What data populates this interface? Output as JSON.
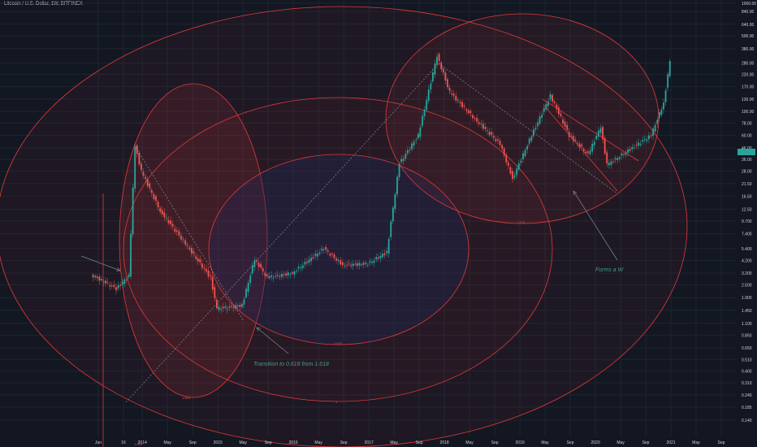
{
  "header": {
    "title": "Litecoin / U.S. Dollar, 1W, BITFINEX"
  },
  "price_badge": {
    "value": "",
    "color": "#26a69a"
  },
  "colors": {
    "background": "#131722",
    "grid": "#1f2432",
    "up": "#26a69a",
    "down": "#ef5350",
    "ellipse": "#e03a3a",
    "trend": "#b2b5be",
    "annotation": "#3f9f86"
  },
  "chart_data": {
    "type": "candlestick",
    "title": "Litecoin / U.S. Dollar, 1W, BITFINEX",
    "y_scale": "log",
    "ylim": [
      0.1,
      1000
    ],
    "y_ticks": [
      "1000.00",
      "840.00",
      "640.00",
      "500.00",
      "380.00",
      "280.00",
      "220.00",
      "170.00",
      "130.00",
      "100.00",
      "78.00",
      "60.00",
      "46.00",
      "36.00",
      "28.00",
      "21.50",
      "16.50",
      "12.50",
      "9.700",
      "7.400",
      "5.400",
      "4.200",
      "3.200",
      "2.500",
      "1.900",
      "1.450",
      "1.100",
      "0.850",
      "0.650",
      "0.510",
      "0.400",
      "0.310",
      "0.240",
      "0.185",
      "0.140"
    ],
    "x_ticks": [
      "Jun",
      "16",
      "2014",
      "May",
      "Sep",
      "2015",
      "May",
      "Sep",
      "2016",
      "May",
      "Sep",
      "2017",
      "May",
      "Sep",
      "2018",
      "May",
      "Sep",
      "2019",
      "May",
      "Sep",
      "2020",
      "May",
      "Sep",
      "2021",
      "May",
      "Sep"
    ],
    "x_range": [
      "2013-05",
      "2021-11"
    ],
    "series": [
      {
        "period": "2013-05",
        "price": 3.1
      },
      {
        "period": "2013-09",
        "price": 2.3
      },
      {
        "period": "2013-11",
        "price": 3.0
      },
      {
        "period": "2013-12",
        "price": 48.0
      },
      {
        "period": "2014-01",
        "price": 28.0
      },
      {
        "period": "2014-04",
        "price": 12.0
      },
      {
        "period": "2014-08",
        "price": 6.0
      },
      {
        "period": "2014-12",
        "price": 2.9
      },
      {
        "period": "2015-01",
        "price": 1.5
      },
      {
        "period": "2015-05",
        "price": 1.6
      },
      {
        "period": "2015-07",
        "price": 4.3
      },
      {
        "period": "2015-09",
        "price": 2.9
      },
      {
        "period": "2016-01",
        "price": 3.2
      },
      {
        "period": "2016-06",
        "price": 5.4
      },
      {
        "period": "2016-09",
        "price": 3.8
      },
      {
        "period": "2017-01",
        "price": 3.9
      },
      {
        "period": "2017-04",
        "price": 5.0
      },
      {
        "period": "2017-06",
        "price": 33.0
      },
      {
        "period": "2017-09",
        "price": 60.0
      },
      {
        "period": "2017-12",
        "price": 330.0
      },
      {
        "period": "2018-02",
        "price": 150.0
      },
      {
        "period": "2018-06",
        "price": 85.0
      },
      {
        "period": "2018-10",
        "price": 50.0
      },
      {
        "period": "2018-12",
        "price": 24.0
      },
      {
        "period": "2019-03",
        "price": 60.0
      },
      {
        "period": "2019-06",
        "price": 140.0
      },
      {
        "period": "2019-09",
        "price": 60.0
      },
      {
        "period": "2019-12",
        "price": 40.0
      },
      {
        "period": "2020-02",
        "price": 72.0
      },
      {
        "period": "2020-03",
        "price": 32.0
      },
      {
        "period": "2020-07",
        "price": 46.0
      },
      {
        "period": "2020-10",
        "price": 60.0
      },
      {
        "period": "2020-12",
        "price": 120.0
      },
      {
        "period": "2021-01",
        "price": 290.0
      }
    ],
    "annotations": [
      {
        "text": "Transition to 0.618 from 1.618"
      },
      {
        "text": "Forms a W"
      }
    ],
    "fib_labels": [
      "1.618",
      "1.618",
      "1.618",
      "1",
      "1.618"
    ],
    "grid": true
  }
}
